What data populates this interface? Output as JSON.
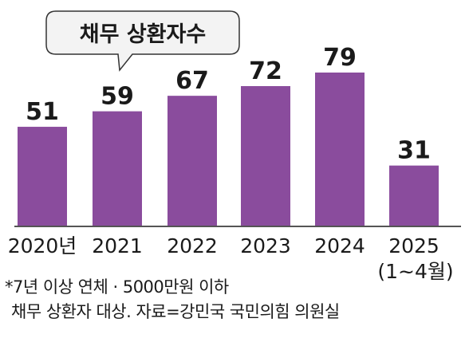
{
  "chart_data": {
    "type": "bar",
    "title": "채무 상환자수",
    "categories": [
      "2020년",
      "2021",
      "2022",
      "2023",
      "2024",
      "2025"
    ],
    "category_sublabels": [
      "",
      "",
      "",
      "",
      "",
      "(1~4월)"
    ],
    "values": [
      51,
      59,
      67,
      72,
      79,
      31
    ],
    "value_labels": [
      "51",
      "59",
      "67",
      "72",
      "79",
      "31"
    ],
    "ylim": [
      0,
      100
    ],
    "grid": false,
    "legend": "none",
    "colors": {
      "bar": "#8a4c9d",
      "axis": "#555555",
      "text": "#1a1a1a",
      "bubble_fill": "#f3f3f3",
      "bubble_stroke": "#333333"
    }
  },
  "footnote": {
    "line1": "*7년 이상 연체 · 5000만원 이하",
    "line2": "채무 상환자 대상. 자료=강민국 국민의힘 의원실"
  }
}
